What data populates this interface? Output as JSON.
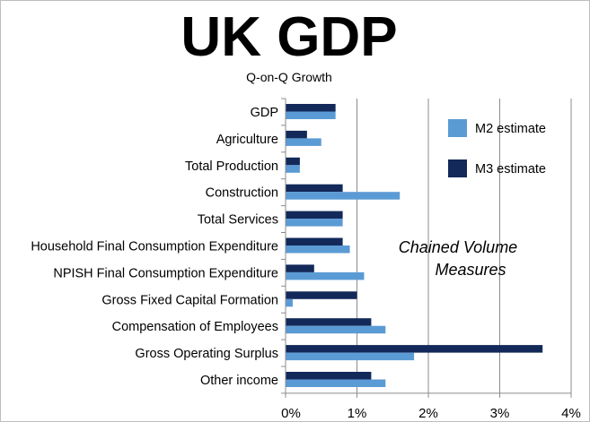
{
  "chart_data": {
    "type": "bar",
    "orientation": "horizontal",
    "title": "UK GDP",
    "subtitle": "Q-on-Q Growth",
    "annotation": [
      "Chained Volume",
      "Measures"
    ],
    "categories": [
      "GDP",
      "Agriculture",
      "Total Production",
      "Construction",
      "Total Services",
      "Household Final Consumption Expenditure",
      "NPISH Final Consumption Expenditure",
      "Gross Fixed Capital Formation",
      "Compensation of Employees",
      "Gross Operating Surplus",
      "Other income"
    ],
    "series": [
      {
        "name": "M3 estimate",
        "color": "#13295a",
        "values": [
          0.7,
          0.3,
          0.2,
          0.8,
          0.8,
          0.8,
          0.4,
          1.0,
          1.2,
          3.6,
          1.2
        ]
      },
      {
        "name": "M2 estimate",
        "color": "#5b9bd5",
        "values": [
          0.7,
          0.5,
          0.2,
          1.6,
          0.8,
          0.9,
          1.1,
          0.1,
          1.4,
          1.8,
          1.4
        ]
      }
    ],
    "xlim": [
      0,
      4
    ],
    "xticks": [
      "0%",
      "1%",
      "2%",
      "3%",
      "4%"
    ],
    "xtick_values": [
      0,
      1,
      2,
      3,
      4
    ],
    "grid": "vertical",
    "legend": {
      "placement": "top-right",
      "items": [
        {
          "name": "M2 estimate",
          "color": "#5b9bd5"
        },
        {
          "name": "M3 estimate",
          "color": "#13295a"
        }
      ]
    }
  }
}
